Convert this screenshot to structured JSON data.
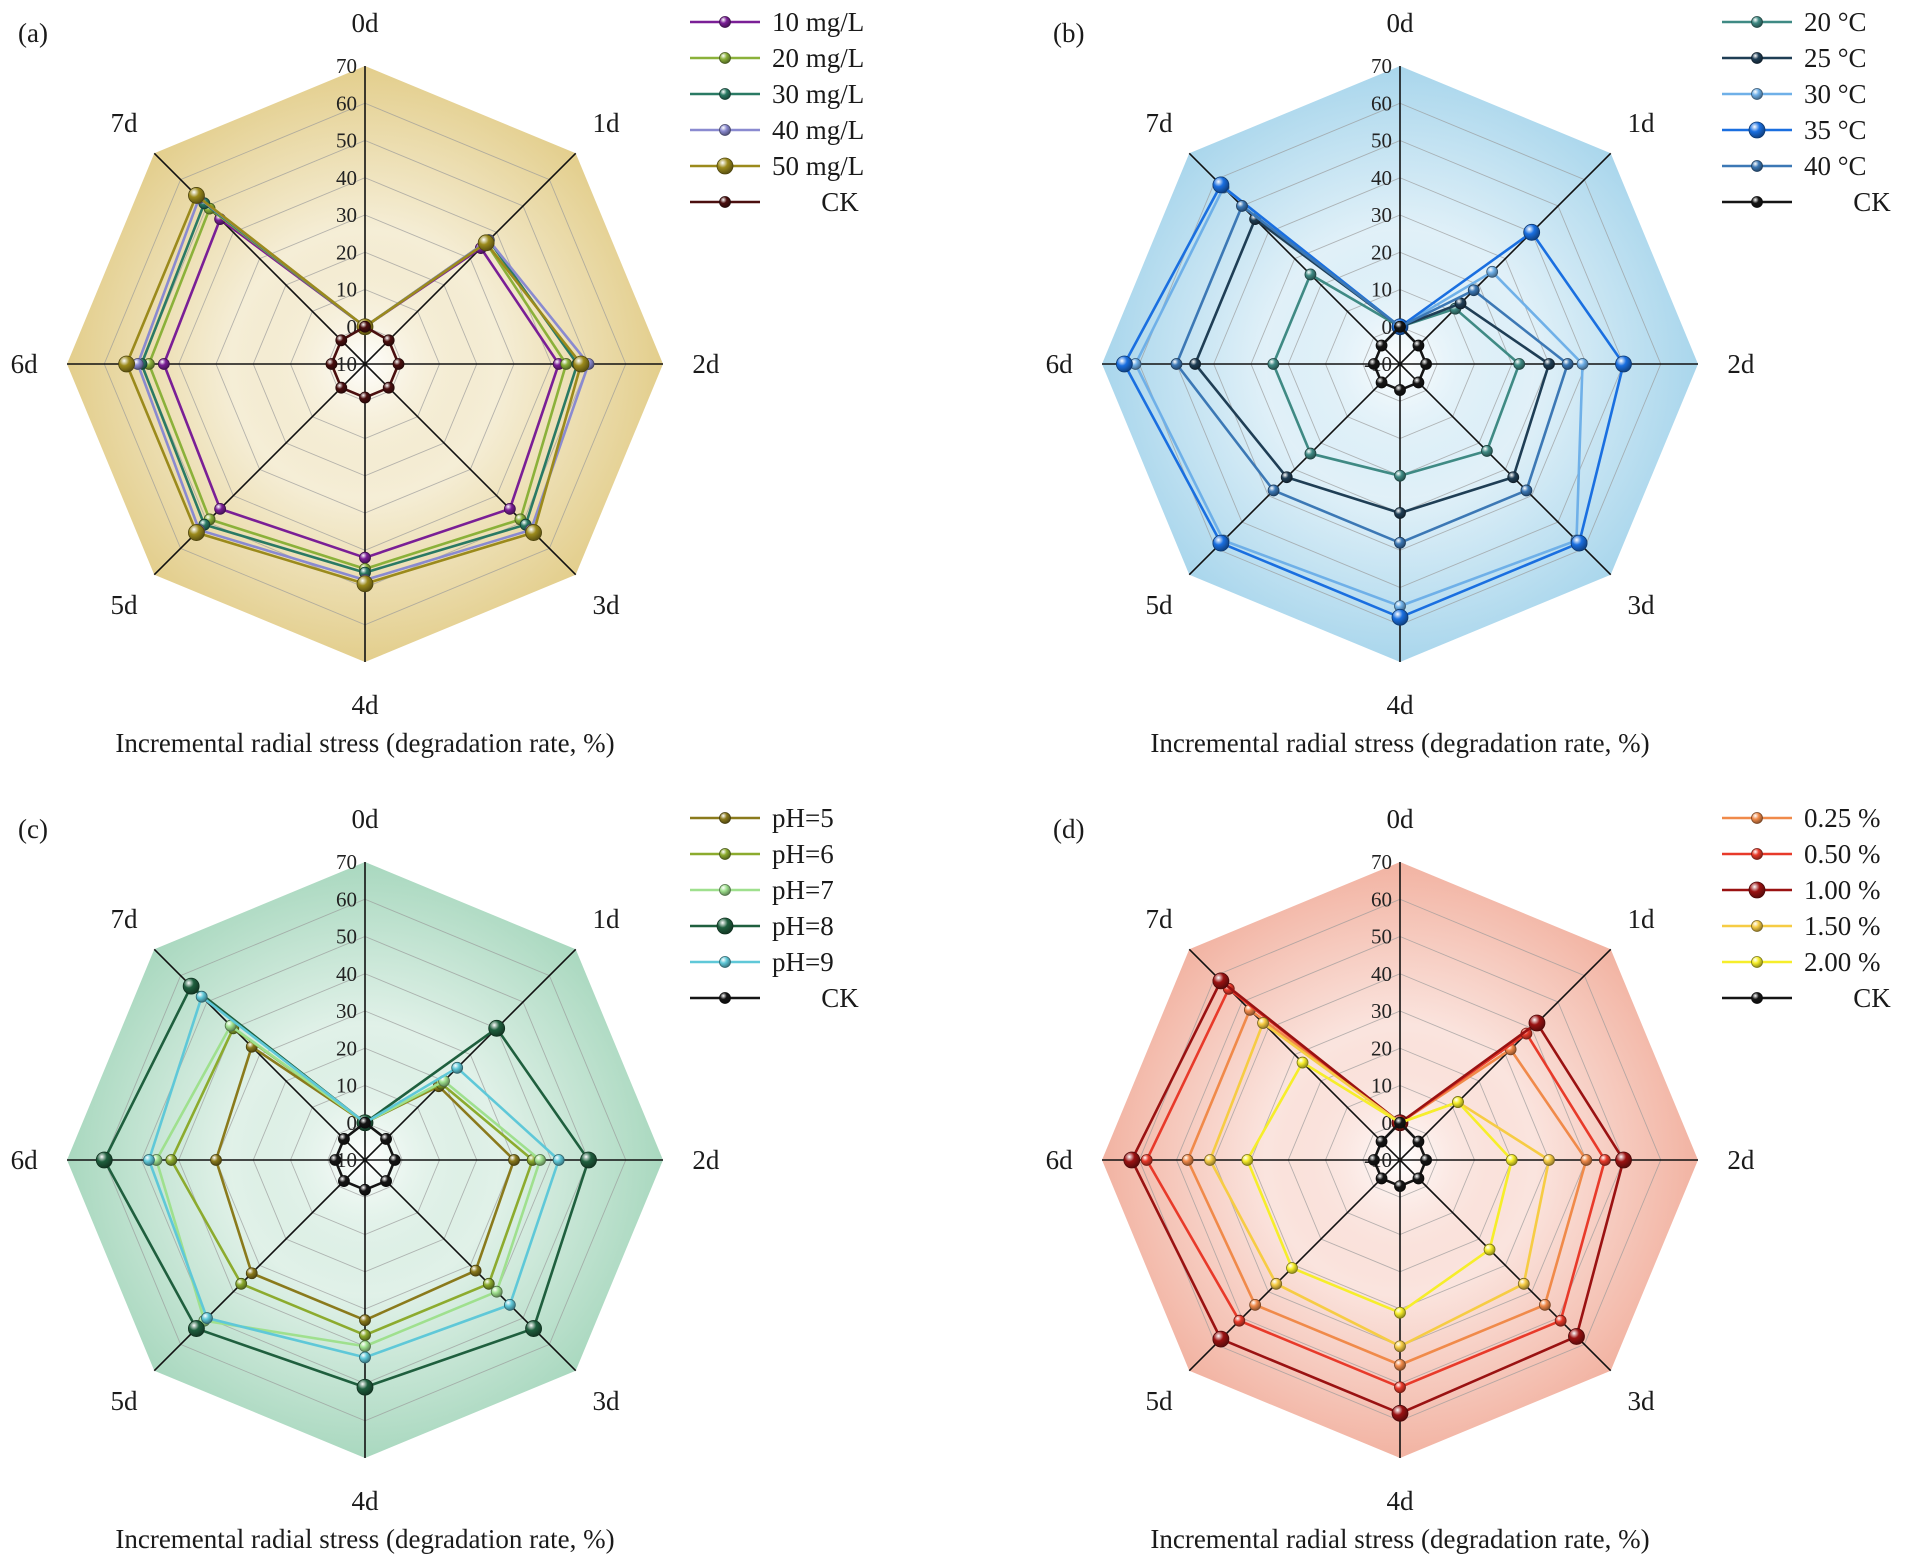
{
  "chart_data": [
    {
      "type": "radar",
      "panel_label": "(a)",
      "title": "",
      "xlabel": "Incremental radial stress (degradation rate, %)",
      "axes": [
        "0d",
        "1d",
        "2d",
        "3d",
        "4d",
        "5d",
        "6d",
        "7d"
      ],
      "rlim": [
        -10,
        70
      ],
      "rticks": [
        -10,
        0,
        10,
        20,
        30,
        40,
        50,
        60,
        70
      ],
      "rtick_labels": [
        "-10",
        "0",
        "10",
        "20",
        "30",
        "40",
        "50",
        "60",
        "70"
      ],
      "fill_color": "#e3ce8c",
      "legend_position": "top-right",
      "series": [
        {
          "name": "10 mg/L",
          "color": "#7a1f96",
          "marker": "small",
          "values": [
            0,
            34,
            42,
            45,
            42,
            45,
            44,
            45
          ]
        },
        {
          "name": "20 mg/L",
          "color": "#8bb13a",
          "marker": "small",
          "values": [
            0,
            36,
            44,
            49,
            45,
            49,
            48,
            49
          ]
        },
        {
          "name": "30 mg/L",
          "color": "#2a7a64",
          "marker": "small",
          "values": [
            0,
            37,
            47,
            51,
            46,
            51,
            50,
            51
          ]
        },
        {
          "name": "40 mg/L",
          "color": "#8a8ad0",
          "marker": "small",
          "values": [
            0,
            37,
            50,
            53,
            48,
            53,
            51,
            53
          ]
        },
        {
          "name": "50 mg/L",
          "color": "#9b8a1c",
          "marker": "large",
          "values": [
            0,
            36,
            48,
            54,
            49,
            54,
            54,
            54
          ]
        },
        {
          "name": "CK",
          "color": "#4a0f0f",
          "marker": "small",
          "values": [
            0,
            -1,
            -1,
            -1,
            -1,
            -1,
            -1,
            -1
          ]
        }
      ]
    },
    {
      "type": "radar",
      "panel_label": "(b)",
      "title": "",
      "xlabel": "Incremental radial stress (degradation rate, %)",
      "axes": [
        "0d",
        "1d",
        "2d",
        "3d",
        "4d",
        "5d",
        "6d",
        "7d"
      ],
      "rlim": [
        -10,
        70
      ],
      "rticks": [
        -10,
        0,
        10,
        20,
        30,
        40,
        50,
        60,
        70
      ],
      "rtick_labels": [
        "-10",
        "0",
        "10",
        "20",
        "30",
        "40",
        "50",
        "60",
        "70"
      ],
      "fill_color": "#a9d6ec",
      "legend_position": "top-right",
      "series": [
        {
          "name": "20 °C",
          "color": "#3f8a84",
          "marker": "small",
          "values": [
            0,
            11,
            22,
            23,
            20,
            24,
            24,
            24
          ]
        },
        {
          "name": "25 °C",
          "color": "#1f3e55",
          "marker": "small",
          "values": [
            0,
            13,
            30,
            33,
            30,
            33,
            45,
            45
          ]
        },
        {
          "name": "30 °C",
          "color": "#6fb0e8",
          "marker": "small",
          "values": [
            0,
            25,
            39,
            57,
            55,
            57,
            61,
            57
          ]
        },
        {
          "name": "35 °C",
          "color": "#1a6fe0",
          "marker": "large",
          "values": [
            0,
            40,
            50,
            58,
            58,
            58,
            64,
            58
          ]
        },
        {
          "name": "40 °C",
          "color": "#3c78b5",
          "marker": "small",
          "values": [
            0,
            18,
            35,
            38,
            38,
            38,
            50,
            50
          ]
        },
        {
          "name": "CK",
          "color": "#151515",
          "marker": "small",
          "values": [
            0,
            -3,
            -3,
            -3,
            -3,
            -3,
            -3,
            -3
          ]
        }
      ]
    },
    {
      "type": "radar",
      "panel_label": "(c)",
      "title": "",
      "xlabel": "Incremental radial stress (degradation rate, %)",
      "axes": [
        "0d",
        "1d",
        "2d",
        "3d",
        "4d",
        "5d",
        "6d",
        "7d"
      ],
      "rlim": [
        -10,
        70
      ],
      "rticks": [
        -10,
        0,
        10,
        20,
        30,
        40,
        50,
        60,
        70
      ],
      "rtick_labels": [
        "-10",
        "0",
        "10",
        "20",
        "30",
        "40",
        "50",
        "60",
        "70"
      ],
      "fill_color": "#a9d8bf",
      "legend_position": "top-right",
      "series": [
        {
          "name": "pH=5",
          "color": "#8a7a1c",
          "marker": "small",
          "values": [
            0,
            18,
            30,
            32,
            33,
            33,
            30,
            33
          ]
        },
        {
          "name": "pH=6",
          "color": "#8cab2e",
          "marker": "small",
          "values": [
            0,
            19,
            35,
            37,
            37,
            37,
            42,
            40
          ]
        },
        {
          "name": "pH=7",
          "color": "#9fe08e",
          "marker": "small",
          "values": [
            0,
            20,
            37,
            40,
            40,
            51,
            46,
            41
          ]
        },
        {
          "name": "pH=8",
          "color": "#1f5f3e",
          "marker": "large",
          "values": [
            0,
            40,
            50,
            54,
            51,
            54,
            60,
            56
          ]
        },
        {
          "name": "pH=9",
          "color": "#5fc8d8",
          "marker": "small",
          "values": [
            0,
            25,
            42,
            45,
            43,
            50,
            48,
            52
          ]
        },
        {
          "name": "CK",
          "color": "#151515",
          "marker": "small",
          "values": [
            0,
            -2,
            -2,
            -2,
            -2,
            -2,
            -2,
            -2
          ]
        }
      ]
    },
    {
      "type": "radar",
      "panel_label": "(d)",
      "title": "",
      "xlabel": "Incremental radial stress (degradation rate, %)",
      "axes": [
        "0d",
        "1d",
        "2d",
        "3d",
        "4d",
        "5d",
        "6d",
        "7d"
      ],
      "rlim": [
        -10,
        70
      ],
      "rticks": [
        -10,
        0,
        10,
        20,
        30,
        40,
        50,
        60,
        70
      ],
      "rtick_labels": [
        "-10",
        "0",
        "10",
        "20",
        "30",
        "40",
        "50",
        "60",
        "70"
      ],
      "fill_color": "#f2b3a2",
      "legend_position": "top-right",
      "series": [
        {
          "name": "0.25 %",
          "color": "#f08a4a",
          "marker": "small",
          "values": [
            0,
            32,
            40,
            45,
            45,
            45,
            47,
            47
          ]
        },
        {
          "name": "0.50 %",
          "color": "#e83a2a",
          "marker": "small",
          "values": [
            0,
            38,
            45,
            51,
            51,
            51,
            58,
            55
          ]
        },
        {
          "name": "1.00 %",
          "color": "#9a1212",
          "marker": "large",
          "values": [
            0,
            42,
            50,
            57,
            58,
            58,
            62,
            58
          ]
        },
        {
          "name": "1.50 %",
          "color": "#f6cc44",
          "marker": "small",
          "values": [
            0,
            12,
            30,
            37,
            40,
            37,
            41,
            42
          ]
        },
        {
          "name": "2.00 %",
          "color": "#f6ee2a",
          "marker": "small",
          "values": [
            0,
            12,
            20,
            24,
            31,
            31,
            31,
            27
          ]
        },
        {
          "name": "CK",
          "color": "#151515",
          "marker": "small",
          "values": [
            0,
            -3,
            -3,
            -3,
            -3,
            -3,
            -3,
            -3
          ]
        }
      ]
    }
  ]
}
